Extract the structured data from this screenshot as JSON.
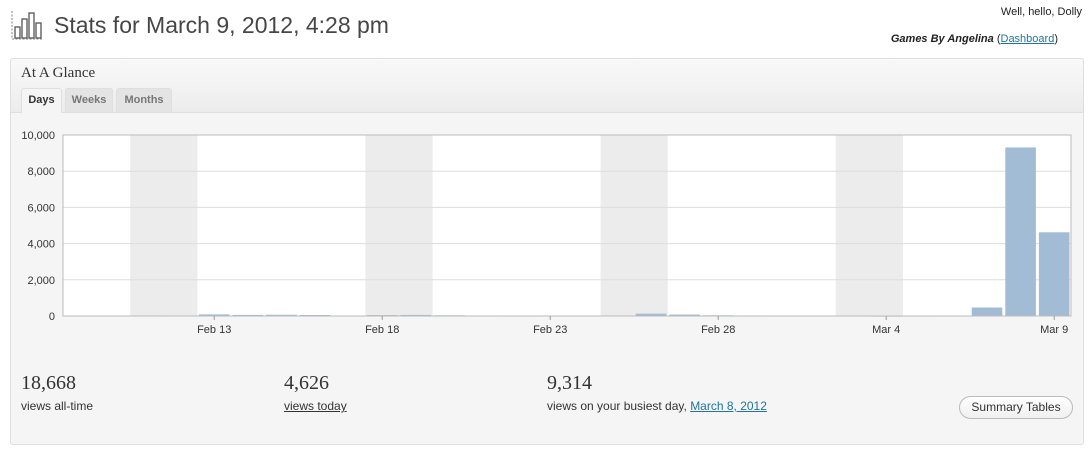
{
  "header": {
    "title": "Stats for March 9, 2012, 4:28 pm",
    "greeting": "Well, hello, Dolly",
    "site_name": "Games By Angelina",
    "open_paren": " (",
    "dashboard_link": "Dashboard",
    "close_paren": ")"
  },
  "panel": {
    "title": "At A Glance",
    "tabs": [
      {
        "label": "Days",
        "active": true
      },
      {
        "label": "Weeks",
        "active": false
      },
      {
        "label": "Months",
        "active": false
      }
    ]
  },
  "chart_data": {
    "type": "bar",
    "ylim": [
      0,
      10000
    ],
    "yticks": [
      0,
      2000,
      4000,
      6000,
      8000,
      10000
    ],
    "ytick_labels": [
      "0",
      "2,000",
      "4,000",
      "6,000",
      "8,000",
      "10,000"
    ],
    "xtick_labels": [
      "Feb 13",
      "Feb 18",
      "Feb 23",
      "Feb 28",
      "Mar 4",
      "Mar 9"
    ],
    "xtick_index": [
      4,
      9,
      14,
      19,
      24,
      29
    ],
    "weekend_bands_start_index": [
      2,
      9,
      16,
      23
    ],
    "bar_color": "#a3bcd6",
    "band_color": "#ececec",
    "grid": true,
    "categories": [
      "Feb 9",
      "Feb 10",
      "Feb 11",
      "Feb 12",
      "Feb 13",
      "Feb 14",
      "Feb 15",
      "Feb 16",
      "Feb 17",
      "Feb 18",
      "Feb 19",
      "Feb 20",
      "Feb 21",
      "Feb 22",
      "Feb 23",
      "Feb 24",
      "Feb 25",
      "Feb 26",
      "Feb 27",
      "Feb 28",
      "Feb 29",
      "Mar 1",
      "Mar 2",
      "Mar 3",
      "Mar 4",
      "Mar 5",
      "Mar 6",
      "Mar 7",
      "Mar 8",
      "Mar 9"
    ],
    "values": [
      20,
      25,
      30,
      20,
      90,
      60,
      70,
      55,
      25,
      50,
      60,
      40,
      20,
      15,
      20,
      25,
      30,
      130,
      80,
      40,
      30,
      25,
      20,
      15,
      10,
      15,
      20,
      470,
      9314,
      4626
    ]
  },
  "stats": [
    {
      "number": "18,668",
      "label": "views all-time"
    },
    {
      "number": "4,626",
      "label": "views today"
    },
    {
      "number": "9,314",
      "label": "views on your busiest day, ",
      "link": "March 8, 2012"
    }
  ],
  "summary_button": "Summary Tables"
}
